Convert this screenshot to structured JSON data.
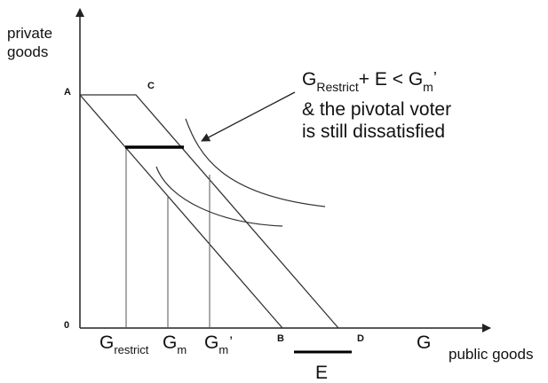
{
  "axes": {
    "y_title": "private goods",
    "x_title": "public goods",
    "origin": "0"
  },
  "points": {
    "A": "A",
    "C": "C",
    "B": "B",
    "D": "D"
  },
  "ticks": {
    "g_restrict": {
      "base": "G",
      "sub": "restrict"
    },
    "g_m": {
      "base": "G",
      "sub": "m"
    },
    "g_m_prime": {
      "base": "G",
      "sub": "m",
      "sup": "’"
    },
    "g": "G"
  },
  "segment_label": "E",
  "annotation": {
    "g": "G",
    "restrict": "Restrict",
    "middle": "+ E < G",
    "m": "m",
    "prime": "’",
    "line2": "& the pivotal voter",
    "line3": "is still dissatisfied"
  },
  "colors": {
    "ink": "#111111",
    "line": "#333333",
    "thin_line": "#555555"
  }
}
